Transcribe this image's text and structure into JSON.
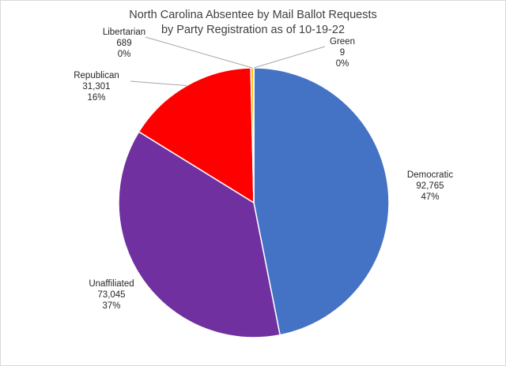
{
  "chart_data": {
    "type": "pie",
    "title_lines": [
      "North Carolina Absentee by Mail Ballot Requests",
      "by Party Registration as of 10-19-22"
    ],
    "slices": [
      {
        "name": "Democratic",
        "value": 92765,
        "value_label": "92,765",
        "percent": "47%",
        "color": "#4472C4"
      },
      {
        "name": "Unaffiliated",
        "value": 73045,
        "value_label": "73,045",
        "percent": "37%",
        "color": "#7030A0"
      },
      {
        "name": "Republican",
        "value": 31301,
        "value_label": "31,301",
        "percent": "16%",
        "color": "#FF0000"
      },
      {
        "name": "Libertarian",
        "value": 689,
        "value_label": "689",
        "percent": "0%",
        "color": "#FFC000"
      },
      {
        "name": "Green",
        "value": 9,
        "value_label": "9",
        "percent": "0%",
        "color": "#70AD47"
      }
    ],
    "start_angle": "12 o'clock",
    "direction": "clockwise",
    "legend": "none"
  }
}
